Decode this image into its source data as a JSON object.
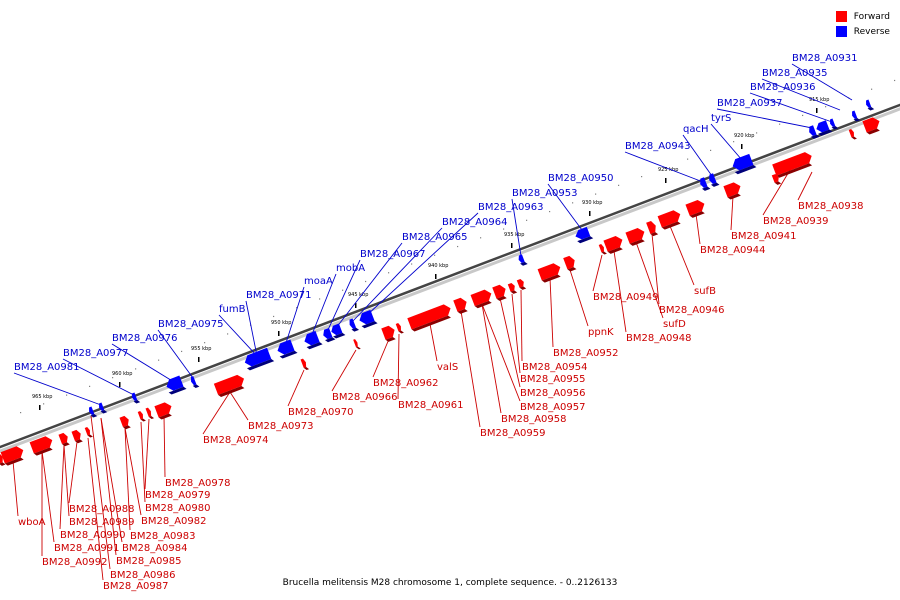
{
  "colors": {
    "forward": "#ff0000",
    "reverse": "#0000ff",
    "forward_label": "#cc0000",
    "reverse_label": "#0000cc"
  },
  "legend": [
    {
      "key": "forward",
      "label": "Forward"
    },
    {
      "key": "reverse",
      "label": "Reverse"
    }
  ],
  "caption": "Brucella melitensis M28 chromosome 1, complete sequence. - 0..2126133",
  "ticks": [
    "915 kbp",
    "920 kbp",
    "925 kbp",
    "930 kbp",
    "935 kbp",
    "940 kbp",
    "945 kbp",
    "950 kbp",
    "955 kbp",
    "960 kbp",
    "965 kbp"
  ],
  "reverse_labels": [
    "BM28_A0931",
    "BM28_A0935",
    "BM28_A0936",
    "BM28_A0937",
    "tyrS",
    "qacH",
    "BM28_A0943",
    "BM28_A0950",
    "BM28_A0953",
    "BM28_A0963",
    "BM28_A0964",
    "BM28_A0965",
    "BM28_A0967",
    "mobA",
    "moaA",
    "BM28_A0971",
    "fumB",
    "BM28_A0975",
    "BM28_A0976",
    "BM28_A0977",
    "BM28_A0981"
  ],
  "forward_labels": [
    "BM28_A0938",
    "BM28_A0939",
    "BM28_A0941",
    "BM28_A0944",
    "sufB",
    "BM28_A0946",
    "sufD",
    "BM28_A0948",
    "BM28_A0949",
    "ppnK",
    "BM28_A0952",
    "BM28_A0954",
    "BM28_A0955",
    "BM28_A0956",
    "BM28_A0957",
    "BM28_A0958",
    "BM28_A0959",
    "valS",
    "BM28_A0961",
    "BM28_A0962",
    "BM28_A0966",
    "BM28_A0970",
    "BM28_A0973",
    "BM28_A0974",
    "BM28_A0978",
    "BM28_A0979",
    "BM28_A0980",
    "BM28_A0982",
    "BM28_A0983",
    "BM28_A0984",
    "BM28_A0985",
    "BM28_A0986",
    "BM28_A0987",
    "BM28_A0988",
    "BM28_A0989",
    "BM28_A0990",
    "BM28_A0991",
    "BM28_A0992",
    "wboA"
  ]
}
